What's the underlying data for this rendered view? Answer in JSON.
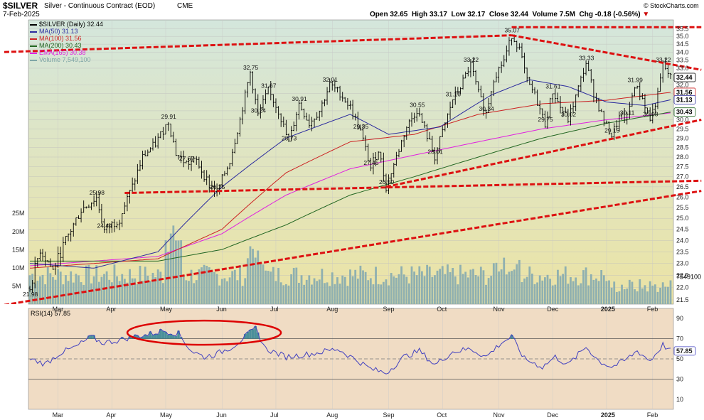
{
  "header": {
    "symbol": "$SILVER",
    "description": "Silver - Continuous Contract (EOD)",
    "exchange": "CME",
    "date": "7-Feb-2025",
    "open_label": "Open",
    "open": "32.65",
    "high_label": "High",
    "high": "33.17",
    "low_label": "Low",
    "low": "32.17",
    "close_label": "Close",
    "close": "32.44",
    "volume_label": "Volume",
    "volume": "7.5M",
    "chg_label": "Chg",
    "chg": "-0.18 (-0.56%)",
    "chg_arrow": "▼",
    "credit": "© StockCharts.com"
  },
  "legend": [
    {
      "text": "$SILVER (Daily) 32.44",
      "color": "#000000"
    },
    {
      "text": "MA(50) 31.13",
      "color": "#2b2b9e"
    },
    {
      "text": "MA(100) 31.56",
      "color": "#cc2222"
    },
    {
      "text": "MA(200) 30.43",
      "color": "#226622"
    },
    {
      "text": "EMA(165) 30.38",
      "color": "#e020e0"
    },
    {
      "text": "Volume 7,549,100",
      "color": "#7fa6a6"
    }
  ],
  "rsi_label": "RSI(14) 57.85",
  "colors": {
    "price_bg_top": "#d4e6dc",
    "price_bg_bottom": "#ece3a4",
    "rsi_bg": "#f0dcc4",
    "trendline": "#dd1111",
    "ellipse": "#dd0000",
    "ma50": "#2b2b9e",
    "ma100": "#cc2222",
    "ma200": "#226622",
    "ema165": "#e020e0",
    "volume": "#8fb0b0",
    "rsi": "#4040c0"
  },
  "chart_data": [
    {
      "type": "candlestick",
      "title": "$SILVER (Daily)",
      "x_months": [
        "Mar",
        "Apr",
        "May",
        "Jun",
        "Jul",
        "Aug",
        "Sep",
        "Oct",
        "Nov",
        "Dec",
        "2025",
        "Feb"
      ],
      "y_ticks": [
        "35.5",
        "35.0",
        "34.5",
        "34.0",
        "33.5",
        "33.0",
        "32.0",
        "31.5",
        "31.0",
        "30.5",
        "30.0",
        "29.5",
        "29.0",
        "28.5",
        "28.0",
        "27.5",
        "27.0",
        "26.5",
        "26.0",
        "25.5",
        "25.0",
        "24.5",
        "24.0",
        "23.5",
        "23.0",
        "22.5",
        "22.0",
        "21.5"
      ],
      "ylim": [
        21.5,
        35.8
      ],
      "right_labels": [
        "32.44",
        "31.56",
        "31.13",
        "30.43"
      ],
      "price_path": [
        [
          0,
          21.98
        ],
        [
          4,
          23.6
        ],
        [
          9,
          22.7
        ],
        [
          14,
          24.0
        ],
        [
          20,
          25.4
        ],
        [
          26,
          25.98
        ],
        [
          29,
          24.44
        ],
        [
          35,
          25.0
        ],
        [
          40,
          26.5
        ],
        [
          44,
          28.0
        ],
        [
          49,
          28.7
        ],
        [
          54,
          29.91
        ],
        [
          57,
          28.2
        ],
        [
          61,
          27.67
        ],
        [
          65,
          27.8
        ],
        [
          70,
          26.6
        ],
        [
          73,
          26.25
        ],
        [
          78,
          27.8
        ],
        [
          82,
          30.0
        ],
        [
          86,
          32.75
        ],
        [
          89,
          30.24
        ],
        [
          93,
          31.67
        ],
        [
          97,
          30.5
        ],
        [
          101,
          28.73
        ],
        [
          105,
          30.91
        ],
        [
          109,
          29.8
        ],
        [
          113,
          30.5
        ],
        [
          117,
          32.01
        ],
        [
          121,
          31.5
        ],
        [
          125,
          30.7
        ],
        [
          129,
          29.35
        ],
        [
          133,
          27.45
        ],
        [
          136,
          28.4
        ],
        [
          139,
          26.5
        ],
        [
          143,
          28.0
        ],
        [
          147,
          29.6
        ],
        [
          151,
          30.55
        ],
        [
          154,
          29.5
        ],
        [
          158,
          28.01
        ],
        [
          161,
          29.3
        ],
        [
          165,
          31.16
        ],
        [
          168,
          31.9
        ],
        [
          172,
          33.22
        ],
        [
          175,
          31.5
        ],
        [
          178,
          30.34
        ],
        [
          181,
          32.4
        ],
        [
          185,
          33.5
        ],
        [
          188,
          35.07
        ],
        [
          191,
          34.2
        ],
        [
          194,
          32.2
        ],
        [
          197,
          31.4
        ],
        [
          201,
          29.75
        ],
        [
          204,
          31.61
        ],
        [
          207,
          30.7
        ],
        [
          210,
          30.02
        ],
        [
          213,
          31.3
        ],
        [
          217,
          33.33
        ],
        [
          220,
          31.5
        ],
        [
          224,
          29.9
        ],
        [
          227,
          29.15
        ],
        [
          230,
          30.1
        ],
        [
          233,
          30.11
        ],
        [
          236,
          31.99
        ],
        [
          239,
          31.2
        ],
        [
          242,
          30.03
        ],
        [
          245,
          31.4
        ],
        [
          247,
          33.22
        ],
        [
          250,
          32.44
        ]
      ],
      "price_annotations": [
        {
          "label": "21.98",
          "i": 0,
          "v": 21.98
        },
        {
          "label": "25.98",
          "i": 26,
          "v": 25.98
        },
        {
          "label": "24.44",
          "i": 29,
          "v": 24.44
        },
        {
          "label": "29.91",
          "i": 54,
          "v": 29.91
        },
        {
          "label": "27.67",
          "i": 61,
          "v": 27.67
        },
        {
          "label": "26.25",
          "i": 73,
          "v": 26.25
        },
        {
          "label": "32.75",
          "i": 86,
          "v": 32.75
        },
        {
          "label": "30.24",
          "i": 89,
          "v": 30.24
        },
        {
          "label": "31.67",
          "i": 93,
          "v": 31.67
        },
        {
          "label": "28.73",
          "i": 101,
          "v": 28.73
        },
        {
          "label": "30.91",
          "i": 105,
          "v": 30.91
        },
        {
          "label": "32.01",
          "i": 117,
          "v": 32.01
        },
        {
          "label": "29.35",
          "i": 129,
          "v": 29.35
        },
        {
          "label": "27.45",
          "i": 133,
          "v": 27.45
        },
        {
          "label": "26.50",
          "i": 139,
          "v": 26.5
        },
        {
          "label": "30.55",
          "i": 151,
          "v": 30.55
        },
        {
          "label": "28.01",
          "i": 158,
          "v": 28.01
        },
        {
          "label": "31.16",
          "i": 165,
          "v": 31.16
        },
        {
          "label": "33.22",
          "i": 172,
          "v": 33.22
        },
        {
          "label": "30.34",
          "i": 178,
          "v": 30.34
        },
        {
          "label": "35.07",
          "i": 188,
          "v": 35.07
        },
        {
          "label": "29.75",
          "i": 201,
          "v": 29.75
        },
        {
          "label": "31.61",
          "i": 204,
          "v": 31.61
        },
        {
          "label": "30.02",
          "i": 210,
          "v": 30.02
        },
        {
          "label": "33.33",
          "i": 217,
          "v": 33.33
        },
        {
          "label": "29.15",
          "i": 227,
          "v": 29.15
        },
        {
          "label": "30.11",
          "i": 233,
          "v": 30.11
        },
        {
          "label": "31.99",
          "i": 236,
          "v": 31.99
        },
        {
          "label": "30.03",
          "i": 242,
          "v": 30.03
        },
        {
          "label": "33.22",
          "i": 247,
          "v": 33.22
        }
      ],
      "ma50_path": [
        [
          0,
          23.0
        ],
        [
          25,
          22.8
        ],
        [
          50,
          23.5
        ],
        [
          75,
          26.5
        ],
        [
          100,
          29.0
        ],
        [
          125,
          30.3
        ],
        [
          140,
          29.2
        ],
        [
          160,
          29.6
        ],
        [
          180,
          31.4
        ],
        [
          195,
          32.3
        ],
        [
          210,
          31.9
        ],
        [
          225,
          31.0
        ],
        [
          240,
          30.8
        ],
        [
          250,
          31.13
        ]
      ],
      "ma100_path": [
        [
          0,
          22.8
        ],
        [
          50,
          23.2
        ],
        [
          75,
          24.5
        ],
        [
          100,
          27.2
        ],
        [
          125,
          28.8
        ],
        [
          150,
          29.2
        ],
        [
          175,
          30.3
        ],
        [
          200,
          30.9
        ],
        [
          225,
          31.1
        ],
        [
          250,
          31.56
        ]
      ],
      "ma200_path": [
        [
          0,
          23.1
        ],
        [
          50,
          23.1
        ],
        [
          75,
          23.6
        ],
        [
          100,
          24.7
        ],
        [
          125,
          26.1
        ],
        [
          150,
          27.0
        ],
        [
          175,
          28.0
        ],
        [
          200,
          29.0
        ],
        [
          225,
          29.8
        ],
        [
          250,
          30.43
        ]
      ],
      "ema165_path": [
        [
          0,
          22.9
        ],
        [
          50,
          23.3
        ],
        [
          75,
          24.3
        ],
        [
          100,
          26.1
        ],
        [
          125,
          27.4
        ],
        [
          150,
          28.1
        ],
        [
          175,
          28.8
        ],
        [
          200,
          29.5
        ],
        [
          225,
          30.0
        ],
        [
          250,
          30.38
        ]
      ],
      "trendlines": [
        {
          "from": [
            -10,
            34.0
          ],
          "to": [
            188,
            35.07
          ]
        },
        {
          "from": [
            188,
            35.07
          ],
          "to": [
            262,
            32.9
          ]
        },
        {
          "from": [
            188,
            35.6
          ],
          "to": [
            262,
            35.6
          ]
        },
        {
          "from": [
            37,
            26.2
          ],
          "to": [
            262,
            26.8
          ]
        },
        {
          "from": [
            -10,
            21.3
          ],
          "to": [
            262,
            26.3
          ]
        },
        {
          "from": [
            139,
            26.5
          ],
          "to": [
            262,
            30.0
          ]
        }
      ],
      "volume_axis_ticks": [
        "25M",
        "20M",
        "15M",
        "10M",
        "5M"
      ],
      "volume_last": "7549100"
    },
    {
      "type": "line",
      "title": "RSI(14)",
      "y_ticks": [
        "90",
        "70",
        "57.85",
        "50",
        "30",
        "10"
      ],
      "ylim": [
        0,
        100
      ],
      "levels": [
        70,
        50,
        30
      ],
      "rsi_path": [
        [
          0,
          50
        ],
        [
          6,
          45
        ],
        [
          12,
          56
        ],
        [
          18,
          62
        ],
        [
          24,
          72
        ],
        [
          28,
          66
        ],
        [
          34,
          68
        ],
        [
          40,
          72
        ],
        [
          46,
          74
        ],
        [
          52,
          78
        ],
        [
          58,
          75
        ],
        [
          63,
          58
        ],
        [
          68,
          52
        ],
        [
          73,
          55
        ],
        [
          79,
          62
        ],
        [
          84,
          72
        ],
        [
          88,
          80
        ],
        [
          92,
          60
        ],
        [
          100,
          52
        ],
        [
          110,
          55
        ],
        [
          120,
          60
        ],
        [
          128,
          48
        ],
        [
          133,
          40
        ],
        [
          139,
          36
        ],
        [
          146,
          52
        ],
        [
          152,
          58
        ],
        [
          158,
          44
        ],
        [
          165,
          57
        ],
        [
          172,
          60
        ],
        [
          178,
          52
        ],
        [
          184,
          66
        ],
        [
          188,
          72
        ],
        [
          193,
          50
        ],
        [
          200,
          42
        ],
        [
          205,
          52
        ],
        [
          210,
          44
        ],
        [
          217,
          62
        ],
        [
          222,
          48
        ],
        [
          227,
          42
        ],
        [
          232,
          48
        ],
        [
          237,
          58
        ],
        [
          242,
          48
        ],
        [
          247,
          64
        ],
        [
          250,
          57.85
        ]
      ]
    }
  ]
}
